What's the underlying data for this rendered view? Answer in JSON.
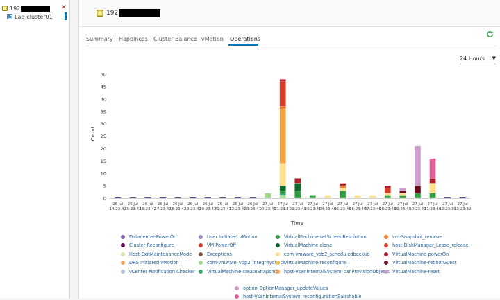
{
  "sidebar": {
    "host_prefix": "192",
    "cluster_name": "Lab-cluster01"
  },
  "header": {
    "title_prefix": "192"
  },
  "tabs": [
    "Summary",
    "Happiness",
    "Cluster Balance",
    "vMotion",
    "Operations"
  ],
  "active_tab": "Operations",
  "time_range": "24 Hours",
  "colors": {
    "accent": "#0079b8",
    "close": "#c21d00",
    "refresh": "#2e9e3e"
  },
  "chart_data": {
    "type": "bar",
    "stacked": true,
    "xlabel": "Time",
    "ylabel": "Count",
    "ylim": [
      0,
      52
    ],
    "yticks": [
      0,
      5,
      10,
      15,
      20,
      25,
      30,
      35,
      40,
      45,
      50
    ],
    "grid": false,
    "legend_position": "bottom",
    "categories": [
      [
        "26 Jul",
        "14:23:42"
      ],
      [
        "26 Jul",
        "15:23:42"
      ],
      [
        "26 Jul",
        "16:23:42"
      ],
      [
        "26 Jul",
        "17:23:42"
      ],
      [
        "26 Jul",
        "18:23:42"
      ],
      [
        "26 Jul",
        "19:23:42"
      ],
      [
        "26 Jul",
        "20:23:42"
      ],
      [
        "26 Jul",
        "21:23:41"
      ],
      [
        "26 Jul",
        "22:23:41"
      ],
      [
        "26 Jul",
        "23:23:41"
      ],
      [
        "27 Jul",
        "00:23:41"
      ],
      [
        "27 Jul",
        "01:23:41"
      ],
      [
        "27 Jul",
        "02:23:41"
      ],
      [
        "27 Jul",
        "03:23:41"
      ],
      [
        "27 Jul",
        "04:23:40"
      ],
      [
        "27 Jul",
        "05:23:40"
      ],
      [
        "27 Jul",
        "06:23:40"
      ],
      [
        "27 Jul",
        "07:23:40"
      ],
      [
        "27 Jul",
        "08:23:40"
      ],
      [
        "27 Jul",
        "09:23:40"
      ],
      [
        "27 Jul",
        "10:23:40"
      ],
      [
        "27 Jul",
        "11:23:40"
      ],
      [
        "27 Jul",
        "12:23:39"
      ],
      [
        "27 Jul",
        "13:23:39"
      ]
    ],
    "series": [
      {
        "name": "Datacenter-PowerOn",
        "color": "#7b5ea7",
        "values": [
          0,
          0,
          0,
          0,
          0,
          0,
          0,
          0,
          0,
          0,
          0,
          0,
          0,
          0,
          0,
          0,
          0,
          0,
          0,
          0,
          0,
          0,
          0,
          0
        ]
      },
      {
        "name": "Cluster-Reconfigure",
        "color": "#5d0a52",
        "values": [
          0,
          0,
          0,
          0,
          0,
          0,
          0,
          0,
          0,
          0,
          0,
          0,
          0,
          0,
          0,
          0,
          0,
          0,
          0,
          0,
          0,
          0,
          0,
          0
        ]
      },
      {
        "name": "Host-ExitMaintenanceMode",
        "color": "#cfe8a8",
        "values": [
          0,
          0,
          0,
          0,
          0,
          0,
          0,
          0,
          0,
          0,
          0,
          0,
          0,
          0,
          0,
          0,
          0,
          0,
          0,
          0,
          0,
          0,
          0,
          0
        ]
      },
      {
        "name": "DRS Initiated vMotion",
        "color": "#f0a860",
        "values": [
          0,
          0,
          0,
          0,
          0,
          0,
          0,
          0,
          0,
          0,
          0,
          0,
          0,
          0,
          0,
          0,
          0,
          0,
          0,
          0,
          0,
          0,
          0,
          0
        ]
      },
      {
        "name": "vCenter Notification Checker",
        "color": "#b8bfd6",
        "values": [
          0,
          0,
          0,
          0,
          0,
          0,
          0,
          0,
          0,
          0,
          0,
          0,
          0,
          0,
          0,
          0,
          0,
          0,
          0,
          0,
          0,
          0,
          0,
          0
        ]
      },
      {
        "name": "User Initiated vMotion",
        "color": "#9b8ac4",
        "values": [
          0,
          0,
          0,
          0,
          0,
          0,
          0,
          0,
          0,
          0,
          0,
          0,
          0,
          0,
          0,
          0,
          0,
          0,
          0,
          0,
          0,
          0,
          0,
          0
        ]
      },
      {
        "name": "VM PowerOff",
        "color": "#e03c31",
        "values": [
          0,
          0,
          0,
          0,
          0,
          0,
          0,
          0,
          0,
          0,
          0,
          0,
          0,
          0,
          0,
          0,
          0,
          0,
          0,
          0,
          0,
          0,
          0,
          0
        ]
      },
      {
        "name": "Exceptions",
        "color": "#8a5a44",
        "values": [
          0,
          0,
          0,
          0,
          0,
          0,
          0,
          0,
          0,
          0,
          0,
          0,
          0,
          0,
          0,
          0,
          0,
          0,
          0,
          0,
          0,
          0,
          0,
          0
        ]
      },
      {
        "name": "com-vmware_vdp2_integritycheck",
        "color": "#9ed98a",
        "values": [
          0,
          0,
          0,
          0,
          0,
          0,
          0,
          0,
          0,
          0,
          2,
          1,
          0,
          0,
          0,
          0,
          0,
          0,
          0,
          0,
          0,
          0,
          0,
          0
        ]
      },
      {
        "name": "VirtualMachine-createSnapshot",
        "color": "#38a86b",
        "values": [
          0,
          0,
          0,
          0,
          0,
          0,
          0,
          0,
          0,
          0,
          0,
          1,
          0,
          0,
          0,
          0,
          0,
          0,
          0,
          0,
          0,
          0,
          0,
          0
        ]
      },
      {
        "name": "VirtualMachine-setScreenResolution",
        "color": "#2e9e3e",
        "values": [
          0,
          0,
          0,
          0,
          0,
          0,
          0,
          0,
          0,
          0,
          0,
          1,
          3,
          1,
          0,
          3,
          0,
          0,
          1,
          1,
          2,
          2,
          0,
          0
        ]
      },
      {
        "name": "VirtualMachine-clone",
        "color": "#0b6b2e",
        "values": [
          0,
          0,
          0,
          0,
          0,
          0,
          0,
          0,
          0,
          0,
          0,
          2,
          3,
          0,
          0,
          0,
          0,
          0,
          0,
          0,
          0,
          0,
          0,
          0
        ]
      },
      {
        "name": "com-vmware_vdp2_scheduledbackup",
        "color": "#fde08a",
        "values": [
          0,
          0,
          0,
          0,
          0,
          0,
          0,
          0,
          0,
          0,
          0,
          9,
          0,
          0,
          1,
          1,
          1,
          1,
          1,
          1,
          0,
          4,
          0,
          0
        ]
      },
      {
        "name": "VirtualMachine-reconfigure",
        "color": "#f7c948",
        "values": [
          0,
          0,
          0,
          0,
          0,
          0,
          0,
          0,
          0,
          0,
          0,
          0,
          0,
          0,
          0,
          0,
          0,
          0,
          0,
          0,
          0,
          0,
          0,
          0
        ]
      },
      {
        "name": "host-VsanInternalSystem_canProvisionObjects",
        "color": "#f5a442",
        "values": [
          0,
          0,
          0,
          0,
          0,
          0,
          0,
          0,
          0,
          0,
          0,
          22,
          0,
          0,
          0,
          0,
          0,
          0,
          0,
          0,
          0,
          0,
          0,
          0
        ]
      },
      {
        "name": "vm-Snapshot_remove",
        "color": "#f57c26",
        "values": [
          0,
          0,
          0,
          0,
          0,
          0,
          0,
          0,
          0,
          0,
          0,
          1,
          0,
          0,
          0,
          1,
          0,
          0,
          0,
          0,
          0,
          0,
          0,
          0
        ]
      },
      {
        "name": "host-DiskManager_Lease_release",
        "color": "#d93a26",
        "values": [
          0,
          0,
          0,
          0,
          0,
          0,
          0,
          0,
          0,
          0,
          0,
          10,
          0,
          0,
          0,
          0,
          0,
          0,
          2,
          0,
          0,
          0,
          0,
          0
        ]
      },
      {
        "name": "VirtualMachine-powerOn",
        "color": "#b01e2e",
        "values": [
          0,
          0,
          0,
          0,
          0,
          0,
          0,
          0,
          0,
          0,
          0,
          1,
          2,
          0,
          0,
          1,
          0,
          0,
          1,
          0,
          0,
          2,
          0,
          0
        ]
      },
      {
        "name": "VirtualMachine-rebootGuest",
        "color": "#6e0a1e",
        "values": [
          0,
          0,
          0,
          0,
          0,
          0,
          0,
          0,
          0,
          0,
          0,
          0,
          0,
          0,
          0,
          0,
          0,
          0,
          0,
          1,
          3,
          0,
          0,
          0
        ]
      },
      {
        "name": "VirtualMachine-reset",
        "color": "#cc9fcc",
        "values": [
          0,
          0,
          0,
          0,
          0,
          0,
          0,
          0,
          0,
          0,
          0,
          0,
          0,
          0,
          0,
          0,
          0,
          0,
          0,
          1,
          16,
          0,
          0,
          0
        ]
      },
      {
        "name": "option-OptionManager_updateValues",
        "color": "#c89ad0",
        "values": [
          0,
          0,
          0,
          0,
          0,
          0,
          0,
          0,
          0,
          0,
          0,
          0,
          0,
          0,
          0,
          0,
          0,
          0,
          0,
          0,
          0,
          0,
          0,
          0
        ]
      },
      {
        "name": "host-VsanInternalSystem_reconfigurationSatisfiable",
        "color": "#e0609a",
        "values": [
          0,
          0,
          0,
          0,
          0,
          0,
          0,
          0,
          0,
          0,
          0,
          0,
          0,
          0,
          0,
          0,
          0,
          0,
          0,
          0,
          0,
          8,
          0,
          0
        ]
      }
    ]
  }
}
